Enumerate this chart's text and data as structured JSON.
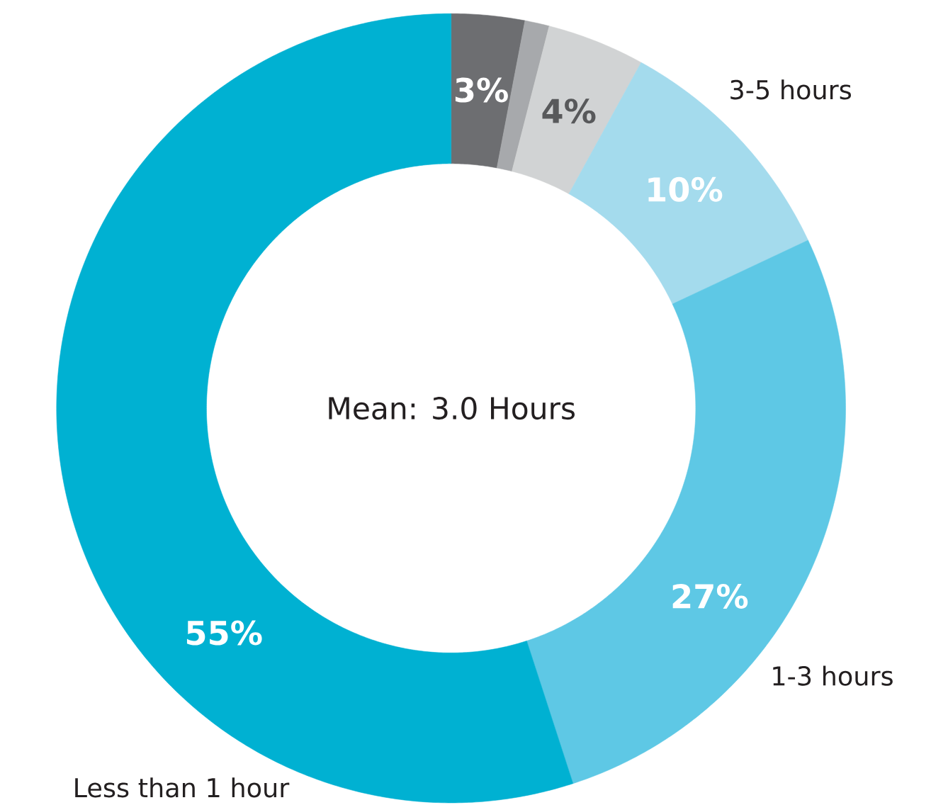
{
  "chart_data": {
    "type": "donut",
    "categories": [
      null,
      null,
      null,
      "3-5 hours",
      "1-3 hours",
      "Less than 1 hour"
    ],
    "values": [
      3,
      1,
      4,
      10,
      27,
      55
    ],
    "colors": [
      "#6d6e71",
      "#a7a9ac",
      "#d1d3d4",
      "#a4dbed",
      "#5ec8e5",
      "#00b1d2"
    ],
    "value_labels": [
      "3%",
      null,
      "4%",
      "10%",
      "27%",
      "55%"
    ],
    "annotations": [
      "Mean: 3.0 Hours"
    ]
  }
}
